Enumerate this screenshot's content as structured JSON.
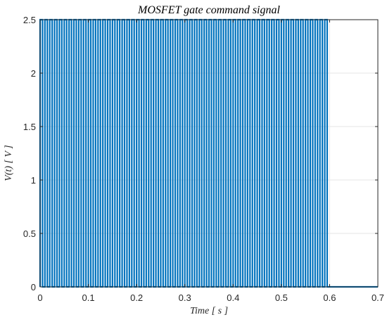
{
  "chart_data": {
    "type": "line",
    "title": "MOSFET gate command signal",
    "xlabel": "Time [ s ]",
    "ylabel": "V(t) [ V ]",
    "xlim": [
      0,
      0.7
    ],
    "ylim": [
      0,
      2.5
    ],
    "xticks": [
      0,
      0.1,
      0.2,
      0.3,
      0.4,
      0.5,
      0.6,
      0.7
    ],
    "xtick_labels": [
      "0",
      "0.1",
      "0.2",
      "0.3",
      "0.4",
      "0.5",
      "0.6",
      "0.7"
    ],
    "yticks": [
      0,
      0.5,
      1,
      1.5,
      2,
      2.5
    ],
    "ytick_labels": [
      "0",
      "0.5",
      "1",
      "1.5",
      "2",
      "2.5"
    ],
    "grid": true,
    "series": [
      {
        "signal": "square-wave",
        "high_level": 2.5,
        "low_level": 0,
        "pulse_count": 60,
        "active_from": 0,
        "active_until": 0.6,
        "value_after": 0,
        "color": "#0072BD"
      }
    ]
  }
}
